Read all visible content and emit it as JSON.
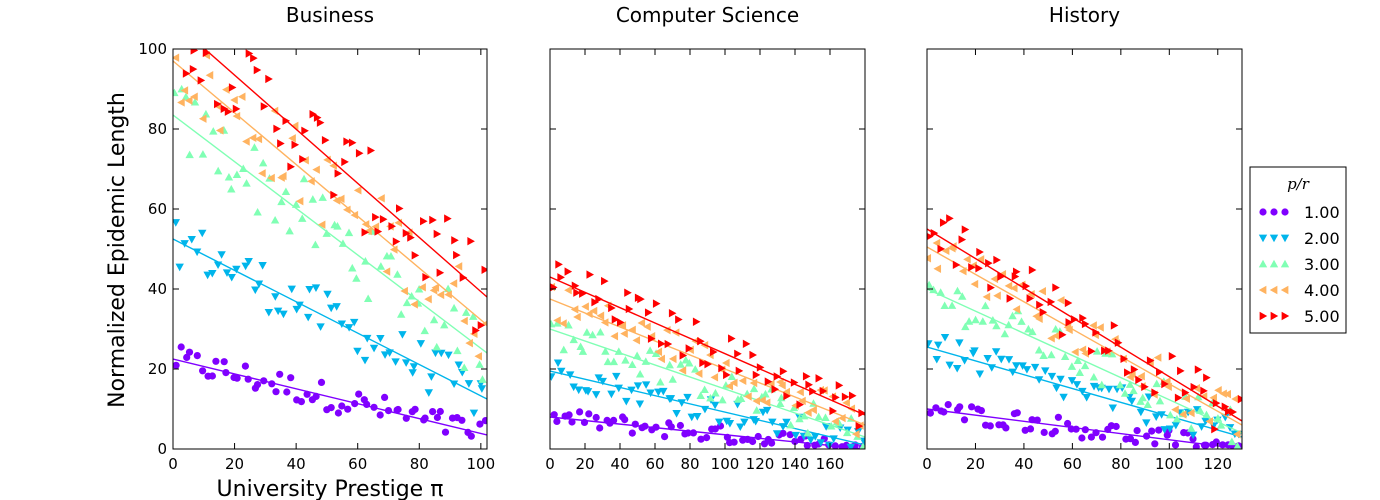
{
  "chart_data": [
    {
      "type": "scatter",
      "title": "Business",
      "xlabel": "University Prestige π",
      "ylabel": "Normalized Epidemic Length",
      "xlim": [
        0,
        102
      ],
      "ylim": [
        0,
        100
      ],
      "xticks": [
        "0",
        "20",
        "40",
        "60",
        "80",
        "100"
      ],
      "yticks": [
        "0",
        "20",
        "40",
        "60",
        "80",
        "100"
      ],
      "series": [
        {
          "name": "1.00",
          "color": "#8000ff",
          "fit": [
            0,
            22.5,
            102,
            3.5
          ]
        },
        {
          "name": "2.00",
          "color": "#00b5eb",
          "fit": [
            0,
            52.5,
            102,
            12.5
          ]
        },
        {
          "name": "3.00",
          "color": "#80ffb4",
          "fit": [
            0,
            83.5,
            102,
            24
          ]
        },
        {
          "name": "4.00",
          "color": "#ffb360",
          "fit": [
            0,
            97,
            102,
            31
          ]
        },
        {
          "name": "5.00",
          "color": "#ff0000",
          "fit": [
            0,
            107,
            102,
            38
          ]
        }
      ]
    },
    {
      "type": "scatter",
      "title": "Computer Science",
      "xlim": [
        0,
        180
      ],
      "ylim": [
        0,
        100
      ],
      "xticks": [
        "0",
        "20",
        "40",
        "60",
        "80",
        "100",
        "120",
        "140",
        "160"
      ],
      "series": [
        {
          "name": "1.00",
          "color": "#8000ff",
          "fit": [
            0,
            8,
            180,
            0
          ]
        },
        {
          "name": "2.00",
          "color": "#00b5eb",
          "fit": [
            0,
            19.5,
            180,
            1
          ]
        },
        {
          "name": "3.00",
          "color": "#80ffb4",
          "fit": [
            0,
            30,
            180,
            3
          ]
        },
        {
          "name": "4.00",
          "color": "#ffb360",
          "fit": [
            0,
            37.5,
            180,
            6
          ]
        },
        {
          "name": "5.00",
          "color": "#ff0000",
          "fit": [
            0,
            43,
            180,
            8.5
          ]
        }
      ]
    },
    {
      "type": "scatter",
      "title": "History",
      "xlim": [
        0,
        130
      ],
      "ylim": [
        0,
        100
      ],
      "xticks": [
        "0",
        "20",
        "40",
        "60",
        "80",
        "100",
        "120"
      ],
      "series": [
        {
          "name": "1.00",
          "color": "#8000ff",
          "fit": [
            0,
            10,
            130,
            0
          ]
        },
        {
          "name": "2.00",
          "color": "#00b5eb",
          "fit": [
            0,
            25.5,
            130,
            3
          ]
        },
        {
          "name": "3.00",
          "color": "#80ffb4",
          "fit": [
            0,
            40,
            130,
            4
          ]
        },
        {
          "name": "4.00",
          "color": "#ffb360",
          "fit": [
            0,
            50.5,
            130,
            6
          ]
        },
        {
          "name": "5.00",
          "color": "#ff0000",
          "fit": [
            0,
            55,
            130,
            7
          ]
        }
      ]
    }
  ],
  "legend": {
    "title": "p/r",
    "placement": "right",
    "entries": [
      {
        "label": "1.00",
        "marker": "circle",
        "color": "#8000ff"
      },
      {
        "label": "2.00",
        "marker": "triangle-down",
        "color": "#00b5eb"
      },
      {
        "label": "3.00",
        "marker": "triangle-up",
        "color": "#80ffb4"
      },
      {
        "label": "4.00",
        "marker": "triangle-left",
        "color": "#ffb360"
      },
      {
        "label": "5.00",
        "marker": "triangle-right",
        "color": "#ff0000"
      }
    ]
  }
}
